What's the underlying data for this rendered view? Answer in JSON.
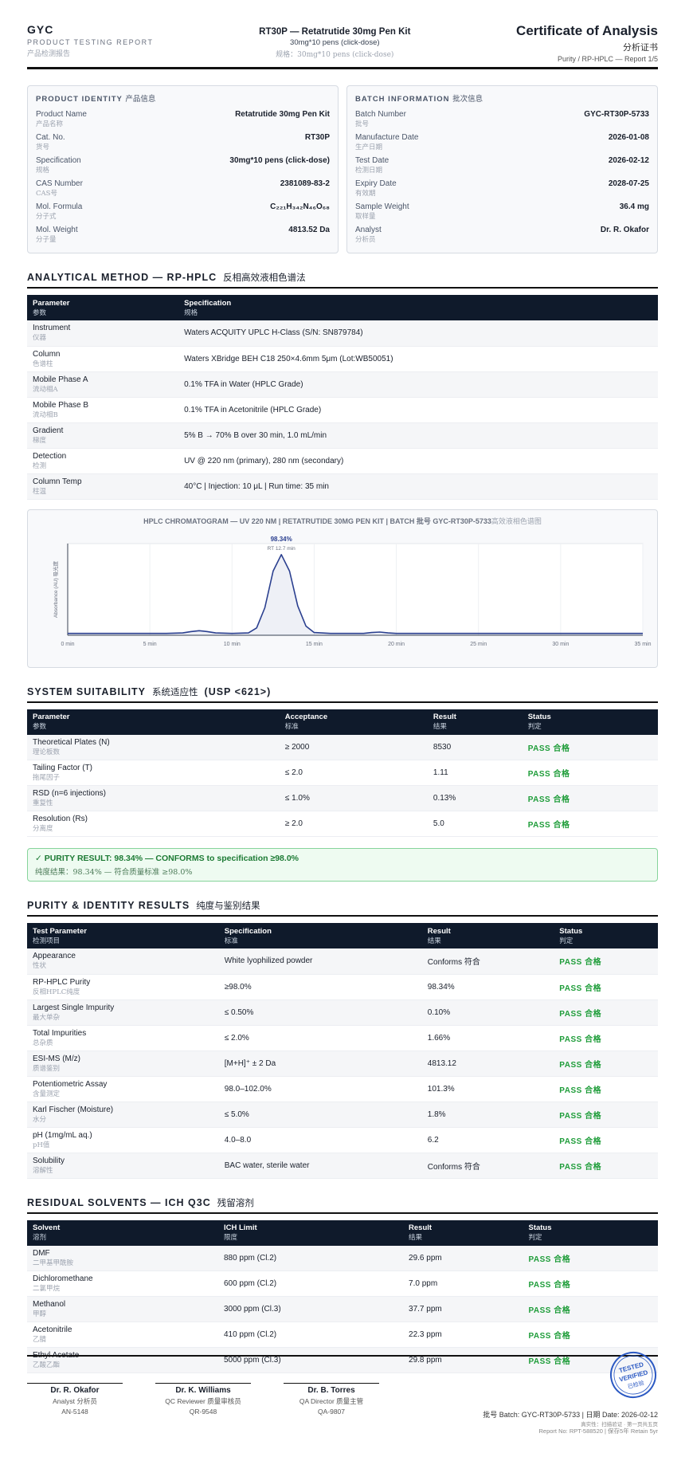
{
  "header": {
    "brand": "GYC",
    "subtitle": "PRODUCT TESTING REPORT",
    "subtitle_cn": "产品检测报告",
    "center_title": "RT30P — Retatrutide 30mg Pen Kit",
    "center_sub": "30mg*10 pens (click-dose)",
    "center_sub_cn": "规格：30mg*10 pens (click-dose)",
    "doc_title": "Certificate of Analysis",
    "doc_title_cn": "分析证书",
    "report": "Purity / RP-HPLC — Report 1/5"
  },
  "product_identity": {
    "title": "PRODUCT IDENTITY",
    "title_cn": "产品信息",
    "rows": [
      [
        "Product Name",
        "产品名称",
        "Retatrutide 30mg Pen Kit"
      ],
      [
        "Cat. No.",
        "货号",
        "RT30P"
      ],
      [
        "Specification",
        "规格",
        "30mg*10 pens (click-dose)"
      ],
      [
        "CAS Number",
        "CAS号",
        "2381089-83-2"
      ],
      [
        "Mol. Formula",
        "分子式",
        "C₂₂₁H₃₄₂N₄₆O₆₈"
      ],
      [
        "Mol. Weight",
        "分子量",
        "4813.52 Da"
      ]
    ]
  },
  "batch_information": {
    "title": "BATCH INFORMATION",
    "title_cn": "批次信息",
    "rows": [
      [
        "Batch Number",
        "批号",
        "GYC-RT30P-5733"
      ],
      [
        "Manufacture Date",
        "生产日期",
        "2026-01-08"
      ],
      [
        "Test Date",
        "检测日期",
        "2026-02-12"
      ],
      [
        "Expiry Date",
        "有效期",
        "2028-07-25"
      ],
      [
        "Sample Weight",
        "取样量",
        "36.4 mg"
      ],
      [
        "Analyst",
        "分析员",
        "Dr. R. Okafor"
      ]
    ]
  },
  "analytical_method": {
    "title": "ANALYTICAL METHOD — RP-HPLC",
    "title_cn": "反相高效液相色谱法",
    "header": [
      [
        "Parameter",
        "参数"
      ],
      [
        "Specification",
        "规格"
      ]
    ],
    "rows": [
      [
        "Instrument",
        "仪器",
        "Waters ACQUITY UPLC H-Class (S/N: SN879784)"
      ],
      [
        "Column",
        "色谱柱",
        "Waters XBridge BEH C18 250×4.6mm 5μm (Lot:WB50051)"
      ],
      [
        "Mobile Phase A",
        "流动相A",
        "0.1% TFA in Water (HPLC Grade)"
      ],
      [
        "Mobile Phase B",
        "流动相B",
        "0.1% TFA in Acetonitrile (HPLC Grade)"
      ],
      [
        "Gradient",
        "梯度",
        "5% B → 70% B over 30 min, 1.0 mL/min"
      ],
      [
        "Detection",
        "检测",
        "UV @ 220 nm (primary), 280 nm (secondary)"
      ],
      [
        "Column Temp",
        "柱温",
        "40°C | Injection: 10 μL | Run time: 35 min"
      ]
    ]
  },
  "chart_data": {
    "type": "line",
    "title": "HPLC CHROMATOGRAM — UV 220 NM | RETATRUTIDE 30MG PEN KIT | BATCH 批号 GYC-RT30P-5733",
    "title_cn": "高效液相色谱图",
    "y_label": "Absorbance (AU) 吸光度",
    "x": [
      0,
      2,
      4,
      6,
      7,
      7.5,
      8,
      8.5,
      9,
      10,
      11,
      11.5,
      12,
      12.5,
      13,
      13.5,
      14,
      14.5,
      15,
      16,
      17,
      18,
      18.5,
      19,
      19.5,
      20,
      22,
      25,
      30,
      35
    ],
    "series": [
      {
        "color": "#2a3f8f",
        "values": [
          2,
          2,
          2,
          2,
          2.5,
          4,
          5,
          4,
          2.5,
          2,
          2.5,
          8,
          30,
          70,
          88,
          70,
          32,
          10,
          3,
          2,
          2,
          2,
          3,
          3.5,
          2.5,
          2,
          2,
          2,
          2,
          2
        ]
      }
    ],
    "xlim": [
      0,
      35
    ],
    "xticks": [
      {
        "value": 0,
        "label": "0 min"
      },
      {
        "value": 5,
        "label": "5 min"
      },
      {
        "value": 10,
        "label": "10 min"
      },
      {
        "value": 15,
        "label": "15 min"
      },
      {
        "value": 20,
        "label": "20 min"
      },
      {
        "value": 25,
        "label": "25 min"
      },
      {
        "value": 30,
        "label": "30 min"
      },
      {
        "value": 35,
        "label": "35 min"
      }
    ],
    "ylim": [
      0,
      100
    ],
    "annotations": [
      "98.34%",
      "RT 12.7 min"
    ]
  },
  "system_suitability": {
    "title": "SYSTEM SUITABILITY",
    "title_cn": "系统适应性",
    "title_suffix": "(USP <621>)",
    "header": [
      [
        "Parameter",
        "参数"
      ],
      [
        "Acceptance",
        "标准"
      ],
      [
        "Result",
        "结果"
      ],
      [
        "Status",
        "判定"
      ]
    ],
    "rows": [
      [
        "Theoretical Plates (N)",
        "理论板数",
        "≥ 2000",
        "8530",
        "PASS 合格"
      ],
      [
        "Tailing Factor (T)",
        "拖尾因子",
        "≤ 2.0",
        "1.11",
        "PASS 合格"
      ],
      [
        "RSD (n=6 injections)",
        "重复性",
        "≤ 1.0%",
        "0.13%",
        "PASS 合格"
      ],
      [
        "Resolution (Rs)",
        "分离度",
        "≥ 2.0",
        "5.0",
        "PASS 合格"
      ]
    ]
  },
  "purity_result": {
    "text": "✓ PURITY RESULT: 98.34% — CONFORMS to specification ≥98.0%",
    "text_cn": "纯度结果：98.34% — 符合质量标准 ≥98.0%"
  },
  "purity_identity": {
    "title": "PURITY & IDENTITY RESULTS",
    "title_cn": "纯度与鉴别结果",
    "header": [
      [
        "Test Parameter",
        "检测项目"
      ],
      [
        "Specification",
        "标准"
      ],
      [
        "Result",
        "结果"
      ],
      [
        "Status",
        "判定"
      ]
    ],
    "rows": [
      [
        "Appearance",
        "性状",
        "White lyophilized powder",
        "Conforms 符合",
        "PASS 合格"
      ],
      [
        "RP-HPLC Purity",
        "反相HPLC纯度",
        "≥98.0%",
        "98.34%",
        "PASS 合格"
      ],
      [
        "Largest Single Impurity",
        "最大单杂",
        "≤ 0.50%",
        "0.10%",
        "PASS 合格"
      ],
      [
        "Total Impurities",
        "总杂质",
        "≤ 2.0%",
        "1.66%",
        "PASS 合格"
      ],
      [
        "ESI-MS (M/z)",
        "质谱鉴别",
        "[M+H]⁺ ± 2 Da",
        "4813.12",
        "PASS 合格"
      ],
      [
        "Potentiometric Assay",
        "含量测定",
        "98.0–102.0%",
        "101.3%",
        "PASS 合格"
      ],
      [
        "Karl Fischer (Moisture)",
        "水分",
        "≤ 5.0%",
        "1.8%",
        "PASS 合格"
      ],
      [
        "pH (1mg/mL aq.)",
        "pH值",
        "4.0–8.0",
        "6.2",
        "PASS 合格"
      ],
      [
        "Solubility",
        "溶解性",
        "BAC water, sterile water",
        "Conforms 符合",
        "PASS 合格"
      ]
    ]
  },
  "residual_solvents": {
    "title": "RESIDUAL SOLVENTS — ICH Q3C",
    "title_cn": "残留溶剂",
    "header": [
      [
        "Solvent",
        "溶剂"
      ],
      [
        "ICH Limit",
        "限度"
      ],
      [
        "Result",
        "结果"
      ],
      [
        "Status",
        "判定"
      ]
    ],
    "rows": [
      [
        "DMF",
        "二甲基甲酰胺",
        "880 ppm (Cl.2)",
        "29.6 ppm",
        "PASS 合格"
      ],
      [
        "Dichloromethane",
        "二氯甲烷",
        "600 ppm (Cl.2)",
        "7.0 ppm",
        "PASS 合格"
      ],
      [
        "Methanol",
        "甲醇",
        "3000 ppm (Cl.3)",
        "37.7 ppm",
        "PASS 合格"
      ],
      [
        "Acetonitrile",
        "乙腈",
        "410 ppm (Cl.2)",
        "22.3 ppm",
        "PASS 合格"
      ],
      [
        "Ethyl Acetate",
        "乙酸乙酯",
        "5000 ppm (Cl.3)",
        "29.8 ppm",
        "PASS 合格"
      ]
    ]
  },
  "signatures": [
    {
      "name": "Dr. R. Okafor",
      "role": "Analyst 分析员",
      "id": "AN-5148"
    },
    {
      "name": "Dr. K. Williams",
      "role": "QC Reviewer 质量审核员",
      "id": "QR-9548"
    },
    {
      "name": "Dr. B. Torres",
      "role": "QA Director 质量主管",
      "id": "QA-9807"
    }
  ],
  "stamp": {
    "line1": "TESTED",
    "line2": "VERIFIED",
    "line3": "已检验"
  },
  "footer": {
    "batch": "批号 Batch: GYC-RT30P-5733 | 日期 Date: 2026-02-12",
    "note": "真实性：扫描验证 · 第一页共五页",
    "report_no": "Report No: RPT-588520 | 保存5年 Retain 5yr"
  }
}
